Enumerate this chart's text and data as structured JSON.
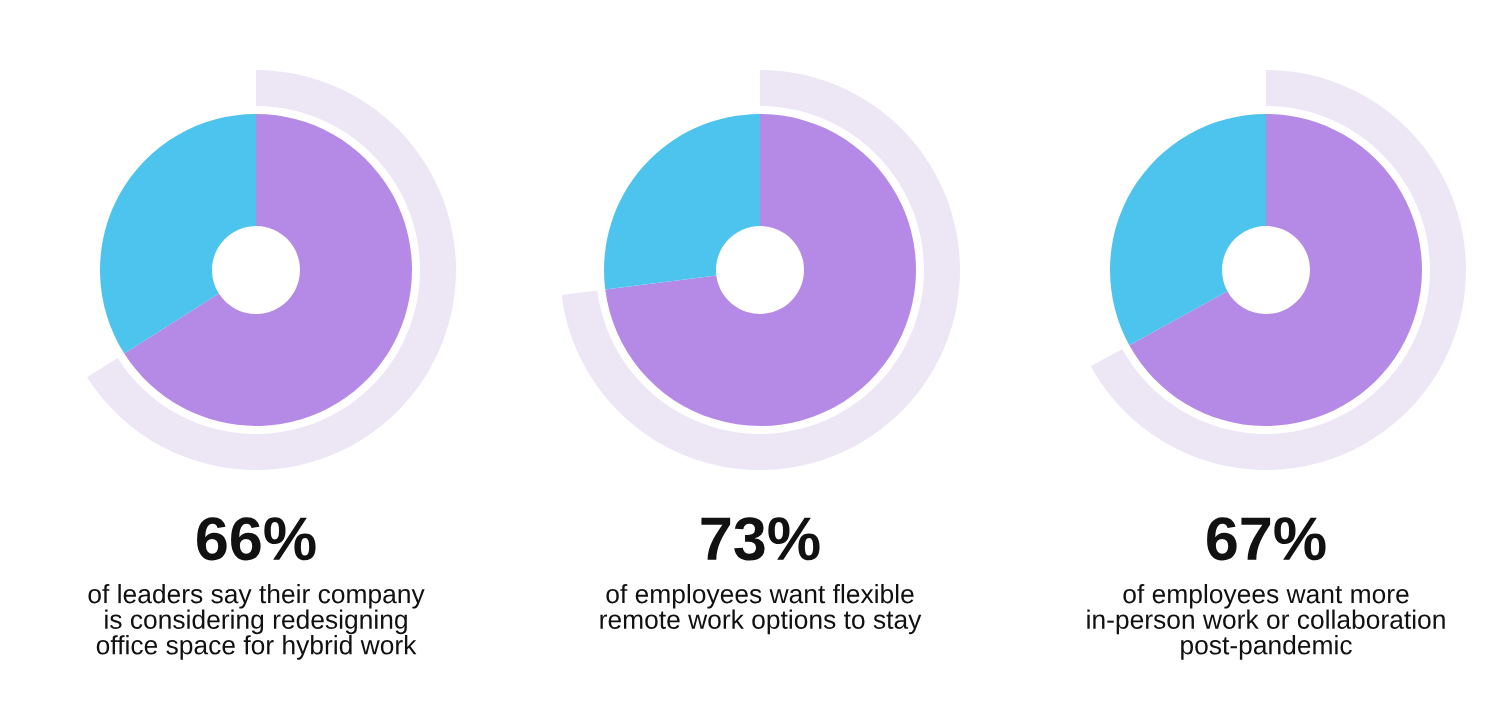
{
  "chart_data": [
    {
      "type": "donut",
      "categories": [
        null,
        null
      ],
      "values": [
        66,
        34
      ],
      "colors": [
        "#b58ae6",
        "#4cc4ee"
      ],
      "value_labels": [
        "66%",
        null
      ],
      "annotations": [
        "of leaders say their company\nis considering redesigning\noffice space for hybrid work"
      ]
    },
    {
      "type": "donut",
      "categories": [
        null,
        null
      ],
      "values": [
        73,
        27
      ],
      "colors": [
        "#b58ae6",
        "#4cc4ee"
      ],
      "value_labels": [
        "73%",
        null
      ],
      "annotations": [
        "of employees want flexible\nremote work options to stay"
      ]
    },
    {
      "type": "donut",
      "categories": [
        null,
        null
      ],
      "values": [
        67,
        33
      ],
      "colors": [
        "#b58ae6",
        "#4cc4ee"
      ],
      "value_labels": [
        "67%",
        null
      ],
      "annotations": [
        "of employees want more\nin-person work or collaboration\npost-pandemic"
      ]
    }
  ]
}
